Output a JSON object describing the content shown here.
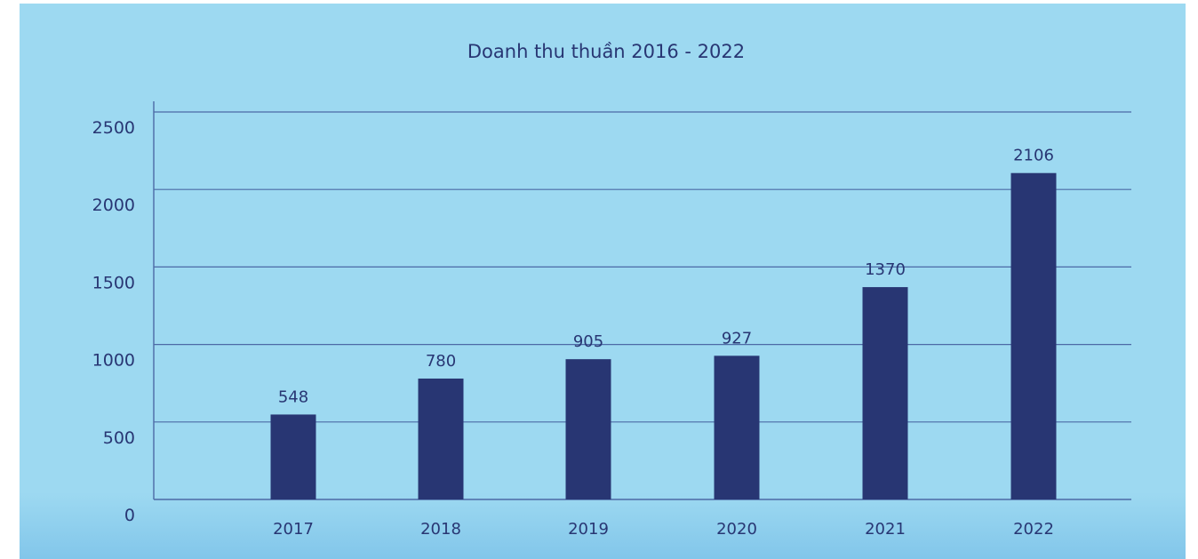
{
  "chart_data": {
    "type": "bar",
    "title": "Doanh thu thuần 2016 - 2022",
    "categories": [
      "2017",
      "2018",
      "2019",
      "2020",
      "2021",
      "2022"
    ],
    "values": [
      548,
      780,
      905,
      927,
      1370,
      2106
    ],
    "data_labels": [
      "548",
      "780",
      "905",
      "927",
      "1370",
      "2106"
    ],
    "yticks": [
      "0",
      "500",
      "1000",
      "1500",
      "2000",
      "2500"
    ],
    "ylim": [
      0,
      2500
    ],
    "grid": true,
    "legend": "none",
    "colors": {
      "bar": "#283673",
      "text": "#283673",
      "grid": "#4c6aa6",
      "background": "#9dd9f1"
    }
  }
}
